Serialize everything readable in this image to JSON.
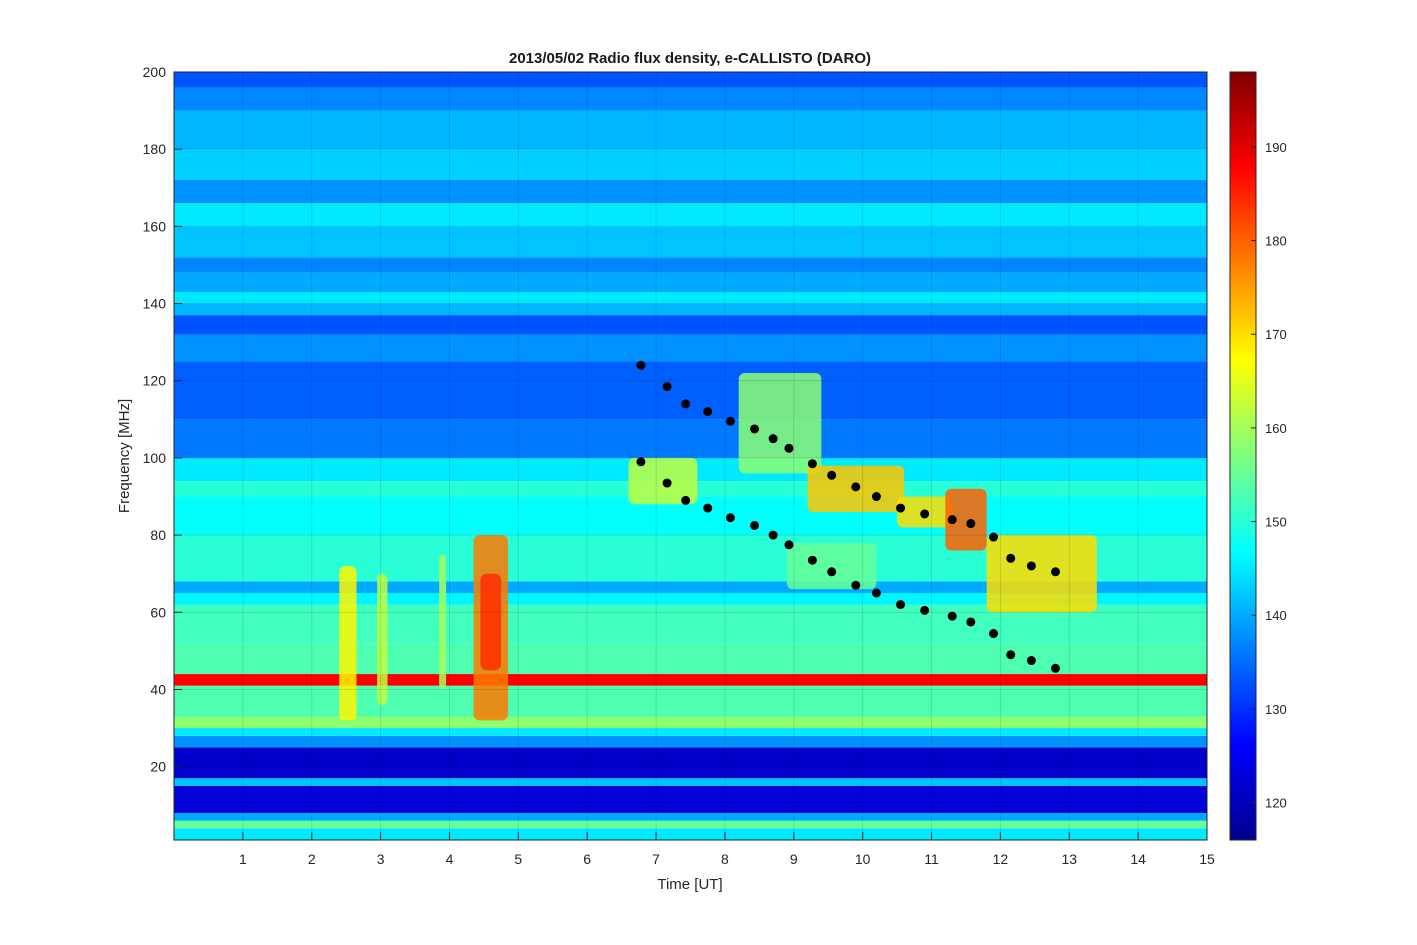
{
  "chart_data": {
    "type": "heatmap",
    "title": "2013/05/02  Radio flux density, e-CALLISTO (DARO)",
    "xlabel": "Time [UT]",
    "ylabel": "Frequency [MHz]",
    "xlim": [
      0,
      15
    ],
    "ylim": [
      1,
      200
    ],
    "xticks": [
      "1",
      "2",
      "3",
      "4",
      "5",
      "6",
      "7",
      "8",
      "9",
      "10",
      "11",
      "12",
      "13",
      "14",
      "15"
    ],
    "yticks": [
      "20",
      "40",
      "60",
      "80",
      "100",
      "120",
      "140",
      "160",
      "180",
      "200"
    ],
    "colorbar": {
      "colormap": "jet",
      "range": [
        116,
        198
      ],
      "ticks": [
        "120",
        "130",
        "140",
        "150",
        "160",
        "170",
        "180",
        "190"
      ]
    },
    "colors": {
      "marker": "#000000"
    },
    "background_bands": [
      {
        "f0": 1,
        "f1": 4,
        "level": 145
      },
      {
        "f0": 4,
        "f1": 6,
        "level": 155
      },
      {
        "f0": 6,
        "f1": 8,
        "level": 140
      },
      {
        "f0": 8,
        "f1": 15,
        "level": 123
      },
      {
        "f0": 15,
        "f1": 17,
        "level": 142
      },
      {
        "f0": 17,
        "f1": 25,
        "level": 122
      },
      {
        "f0": 25,
        "f1": 28,
        "level": 138
      },
      {
        "f0": 28,
        "f1": 30,
        "level": 145
      },
      {
        "f0": 30,
        "f1": 33,
        "level": 158
      },
      {
        "f0": 33,
        "f1": 41,
        "level": 153
      },
      {
        "f0": 41,
        "f1": 44,
        "level": 188
      },
      {
        "f0": 44,
        "f1": 52,
        "level": 153
      },
      {
        "f0": 52,
        "f1": 62,
        "level": 152
      },
      {
        "f0": 62,
        "f1": 65,
        "level": 146
      },
      {
        "f0": 65,
        "f1": 68,
        "level": 140
      },
      {
        "f0": 68,
        "f1": 80,
        "level": 150
      },
      {
        "f0": 80,
        "f1": 90,
        "level": 147
      },
      {
        "f0": 90,
        "f1": 94,
        "level": 150
      },
      {
        "f0": 94,
        "f1": 100,
        "level": 145
      },
      {
        "f0": 100,
        "f1": 110,
        "level": 136
      },
      {
        "f0": 110,
        "f1": 125,
        "level": 134
      },
      {
        "f0": 125,
        "f1": 132,
        "level": 138
      },
      {
        "f0": 132,
        "f1": 137,
        "level": 133
      },
      {
        "f0": 137,
        "f1": 140,
        "level": 141
      },
      {
        "f0": 140,
        "f1": 143,
        "level": 145
      },
      {
        "f0": 143,
        "f1": 148,
        "level": 140
      },
      {
        "f0": 148,
        "f1": 152,
        "level": 137
      },
      {
        "f0": 152,
        "f1": 160,
        "level": 142
      },
      {
        "f0": 160,
        "f1": 166,
        "level": 145
      },
      {
        "f0": 166,
        "f1": 172,
        "level": 138
      },
      {
        "f0": 172,
        "f1": 180,
        "level": 143
      },
      {
        "f0": 180,
        "f1": 190,
        "level": 141
      },
      {
        "f0": 190,
        "f1": 196,
        "level": 137
      },
      {
        "f0": 196,
        "f1": 200,
        "level": 133
      }
    ],
    "bursts": [
      {
        "t0": 4.35,
        "t1": 4.85,
        "f0": 32,
        "f1": 80,
        "level": 178
      },
      {
        "t0": 4.45,
        "t1": 4.75,
        "f0": 45,
        "f1": 70,
        "level": 184
      },
      {
        "t0": 2.4,
        "t1": 2.65,
        "f0": 32,
        "f1": 72,
        "level": 168
      },
      {
        "t0": 2.95,
        "t1": 3.1,
        "f0": 36,
        "f1": 70,
        "level": 162
      },
      {
        "t0": 3.85,
        "t1": 3.95,
        "f0": 40,
        "f1": 75,
        "level": 160
      },
      {
        "t0": 6.6,
        "t1": 7.6,
        "f0": 88,
        "f1": 100,
        "level": 162
      },
      {
        "t0": 8.2,
        "t1": 9.4,
        "f0": 96,
        "f1": 122,
        "level": 158
      },
      {
        "t0": 9.2,
        "t1": 10.6,
        "f0": 86,
        "f1": 98,
        "level": 172
      },
      {
        "t0": 10.5,
        "t1": 11.3,
        "f0": 82,
        "f1": 90,
        "level": 170
      },
      {
        "t0": 11.2,
        "t1": 11.8,
        "f0": 76,
        "f1": 92,
        "level": 180
      },
      {
        "t0": 11.8,
        "t1": 13.4,
        "f0": 60,
        "f1": 80,
        "level": 170
      },
      {
        "t0": 8.9,
        "t1": 10.2,
        "f0": 66,
        "f1": 78,
        "level": 155
      }
    ],
    "series": [
      {
        "x": [
          6.78,
          7.16,
          7.43,
          7.75,
          8.08,
          8.43,
          8.7,
          8.93,
          9.27,
          9.55,
          9.9,
          10.2,
          10.55,
          10.9,
          11.3,
          11.57,
          11.9,
          12.15,
          12.45,
          12.8
        ],
        "y": [
          124,
          118.5,
          114,
          112,
          109.5,
          107.5,
          105,
          102.5,
          98.5,
          95.5,
          92.5,
          90,
          87,
          85.5,
          84,
          83,
          79.5,
          74,
          72,
          70.5
        ]
      },
      {
        "x": [
          6.78,
          7.16,
          7.43,
          7.75,
          8.08,
          8.43,
          8.7,
          8.93,
          9.27,
          9.55,
          9.9,
          10.2,
          10.55,
          10.9,
          11.3,
          11.57,
          11.9,
          12.15,
          12.45,
          12.8
        ],
        "y": [
          99,
          93.5,
          89,
          87,
          84.5,
          82.5,
          80,
          77.5,
          73.5,
          70.5,
          67,
          65,
          62,
          60.5,
          59,
          57.5,
          54.5,
          49,
          47.5,
          45.5
        ]
      }
    ]
  }
}
